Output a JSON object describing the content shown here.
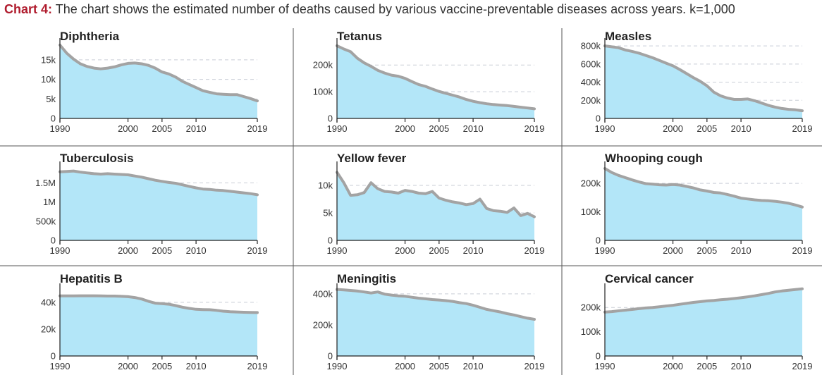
{
  "header": {
    "label": "Chart 4:",
    "text": "The chart shows the estimated number of deaths caused by various vaccine-preventable diseases across years. k=1,000"
  },
  "chart_data": [
    {
      "type": "area",
      "title": "Diphtheria",
      "x_ticks": [
        "1990",
        "2000",
        "2005",
        "2010",
        "2019"
      ],
      "y_ticks": [
        {
          "v": 0,
          "label": "0"
        },
        {
          "v": 5000,
          "label": "5k"
        },
        {
          "v": 10000,
          "label": "10k"
        },
        {
          "v": 15000,
          "label": "15k"
        }
      ],
      "ylim": [
        0,
        19500
      ],
      "x": [
        1990,
        1991,
        1992,
        1993,
        1994,
        1995,
        1996,
        1997,
        1998,
        1999,
        2000,
        2001,
        2002,
        2003,
        2004,
        2005,
        2006,
        2007,
        2008,
        2009,
        2010,
        2011,
        2012,
        2013,
        2014,
        2015,
        2016,
        2017,
        2018,
        2019
      ],
      "values": [
        18800,
        16700,
        15200,
        14000,
        13300,
        12900,
        12700,
        12900,
        13200,
        13700,
        14100,
        14200,
        14000,
        13600,
        12900,
        11900,
        11400,
        10600,
        9500,
        8700,
        7900,
        7100,
        6700,
        6300,
        6200,
        6100,
        6100,
        5600,
        5100,
        4500
      ]
    },
    {
      "type": "area",
      "title": "Tetanus",
      "x_ticks": [
        "1990",
        "2000",
        "2005",
        "2010",
        "2019"
      ],
      "y_ticks": [
        {
          "v": 0,
          "label": "0"
        },
        {
          "v": 100000,
          "label": "100k"
        },
        {
          "v": 200000,
          "label": "200k"
        }
      ],
      "ylim": [
        0,
        285000
      ],
      "x": [
        1990,
        1991,
        1992,
        1993,
        1994,
        1995,
        1996,
        1997,
        1998,
        1999,
        2000,
        2001,
        2002,
        2003,
        2004,
        2005,
        2006,
        2007,
        2008,
        2009,
        2010,
        2011,
        2012,
        2013,
        2014,
        2015,
        2016,
        2017,
        2018,
        2019
      ],
      "values": [
        272000,
        260000,
        250000,
        225000,
        208000,
        195000,
        180000,
        170000,
        162000,
        158000,
        150000,
        138000,
        127000,
        120000,
        110000,
        101000,
        94000,
        87000,
        80000,
        71000,
        64000,
        59000,
        55000,
        52000,
        50000,
        48000,
        45000,
        42000,
        39000,
        36000
      ]
    },
    {
      "type": "area",
      "title": "Measles",
      "x_ticks": [
        "1990",
        "2000",
        "2005",
        "2010",
        "2019"
      ],
      "y_ticks": [
        {
          "v": 0,
          "label": "0"
        },
        {
          "v": 200000,
          "label": "200k"
        },
        {
          "v": 400000,
          "label": "400k"
        },
        {
          "v": 600000,
          "label": "600k"
        },
        {
          "v": 800000,
          "label": "800k"
        }
      ],
      "ylim": [
        0,
        840000
      ],
      "x": [
        1990,
        1991,
        1992,
        1993,
        1994,
        1995,
        1996,
        1997,
        1998,
        1999,
        2000,
        2001,
        2002,
        2003,
        2004,
        2005,
        2006,
        2007,
        2008,
        2009,
        2010,
        2011,
        2012,
        2013,
        2014,
        2015,
        2016,
        2017,
        2018,
        2019
      ],
      "values": [
        800000,
        790000,
        780000,
        755000,
        740000,
        720000,
        695000,
        670000,
        640000,
        610000,
        580000,
        540000,
        495000,
        450000,
        410000,
        360000,
        290000,
        250000,
        225000,
        210000,
        210000,
        215000,
        195000,
        170000,
        145000,
        125000,
        110000,
        100000,
        95000,
        85000
      ]
    },
    {
      "type": "area",
      "title": "Tuberculosis",
      "x_ticks": [
        "1990",
        "2000",
        "2005",
        "2010",
        "2019"
      ],
      "y_ticks": [
        {
          "v": 0,
          "label": "0"
        },
        {
          "v": 500000,
          "label": "500k"
        },
        {
          "v": 1000000,
          "label": "1M"
        },
        {
          "v": 1500000,
          "label": "1.5M"
        }
      ],
      "ylim": [
        0,
        1950000
      ],
      "x": [
        1990,
        1991,
        1992,
        1993,
        1994,
        1995,
        1996,
        1997,
        1998,
        1999,
        2000,
        2001,
        2002,
        2003,
        2004,
        2005,
        2006,
        2007,
        2008,
        2009,
        2010,
        2011,
        2012,
        2013,
        2014,
        2015,
        2016,
        2017,
        2018,
        2019
      ],
      "values": [
        1790000,
        1800000,
        1810000,
        1780000,
        1760000,
        1740000,
        1730000,
        1740000,
        1730000,
        1720000,
        1710000,
        1680000,
        1650000,
        1610000,
        1570000,
        1540000,
        1510000,
        1490000,
        1450000,
        1410000,
        1370000,
        1340000,
        1330000,
        1310000,
        1300000,
        1280000,
        1260000,
        1240000,
        1220000,
        1190000
      ]
    },
    {
      "type": "area",
      "title": "Yellow fever",
      "x_ticks": [
        "1990",
        "2000",
        "2005",
        "2010",
        "2019"
      ],
      "y_ticks": [
        {
          "v": 0,
          "label": "0"
        },
        {
          "v": 5000,
          "label": "5k"
        },
        {
          "v": 10000,
          "label": "10k"
        }
      ],
      "ylim": [
        0,
        13600
      ],
      "x": [
        1990,
        1991,
        1992,
        1993,
        1994,
        1995,
        1996,
        1997,
        1998,
        1999,
        2000,
        2001,
        2002,
        2003,
        2004,
        2005,
        2006,
        2007,
        2008,
        2009,
        2010,
        2011,
        2012,
        2013,
        2014,
        2015,
        2016,
        2017,
        2018,
        2019
      ],
      "values": [
        12400,
        10500,
        8200,
        8300,
        8700,
        10500,
        9400,
        8900,
        8800,
        8600,
        9100,
        8900,
        8600,
        8500,
        8900,
        7700,
        7300,
        7000,
        6800,
        6500,
        6700,
        7500,
        5800,
        5400,
        5300,
        5100,
        5900,
        4500,
        4900,
        4300
      ]
    },
    {
      "type": "area",
      "title": "Whooping cough",
      "x_ticks": [
        "1990",
        "2000",
        "2005",
        "2010",
        "2019"
      ],
      "y_ticks": [
        {
          "v": 0,
          "label": "0"
        },
        {
          "v": 100000,
          "label": "100k"
        },
        {
          "v": 200000,
          "label": "200k"
        }
      ],
      "ylim": [
        0,
        262000
      ],
      "x": [
        1990,
        1991,
        1992,
        1993,
        1994,
        1995,
        1996,
        1997,
        1998,
        1999,
        2000,
        2001,
        2002,
        2003,
        2004,
        2005,
        2006,
        2007,
        2008,
        2009,
        2010,
        2011,
        2012,
        2013,
        2014,
        2015,
        2016,
        2017,
        2018,
        2019
      ],
      "values": [
        252000,
        238000,
        228000,
        220000,
        212000,
        205000,
        199000,
        197000,
        195000,
        194000,
        196000,
        194000,
        189000,
        184000,
        177000,
        173000,
        168000,
        166000,
        161000,
        155000,
        148000,
        145000,
        142000,
        140000,
        139000,
        137000,
        134000,
        130000,
        124000,
        117000
      ]
    },
    {
      "type": "area",
      "title": "Hepatitis B",
      "x_ticks": [
        "1990",
        "2000",
        "2005",
        "2010",
        "2019"
      ],
      "y_ticks": [
        {
          "v": 0,
          "label": "0"
        },
        {
          "v": 20000,
          "label": "20k"
        },
        {
          "v": 40000,
          "label": "40k"
        }
      ],
      "ylim": [
        0,
        51000
      ],
      "x": [
        1990,
        1991,
        1992,
        1993,
        1994,
        1995,
        1996,
        1997,
        1998,
        1999,
        2000,
        2001,
        2002,
        2003,
        2004,
        2005,
        2006,
        2007,
        2008,
        2009,
        2010,
        2011,
        2012,
        2013,
        2014,
        2015,
        2016,
        2017,
        2018,
        2019
      ],
      "values": [
        44800,
        44800,
        44800,
        44900,
        44900,
        44900,
        44800,
        44700,
        44700,
        44500,
        44200,
        43600,
        42500,
        40800,
        39400,
        39000,
        38600,
        37600,
        36400,
        35500,
        34800,
        34600,
        34500,
        34000,
        33400,
        33000,
        32800,
        32600,
        32500,
        32400
      ]
    },
    {
      "type": "area",
      "title": "Meningitis",
      "x_ticks": [
        "1990",
        "2000",
        "2005",
        "2010",
        "2019"
      ],
      "y_ticks": [
        {
          "v": 0,
          "label": "0"
        },
        {
          "v": 200000,
          "label": "200k"
        },
        {
          "v": 400000,
          "label": "400k"
        }
      ],
      "ylim": [
        0,
        440000
      ],
      "x": [
        1990,
        1991,
        1992,
        1993,
        1994,
        1995,
        1996,
        1997,
        1998,
        1999,
        2000,
        2001,
        2002,
        2003,
        2004,
        2005,
        2006,
        2007,
        2008,
        2009,
        2010,
        2011,
        2012,
        2013,
        2014,
        2015,
        2016,
        2017,
        2018,
        2019
      ],
      "values": [
        428000,
        425000,
        422000,
        418000,
        412000,
        405000,
        412000,
        398000,
        392000,
        387000,
        384000,
        378000,
        372000,
        368000,
        363000,
        360000,
        356000,
        351000,
        343000,
        337000,
        326000,
        313000,
        300000,
        291000,
        283000,
        272000,
        264000,
        253000,
        243000,
        236000
      ]
    },
    {
      "type": "area",
      "title": "Cervical cancer",
      "x_ticks": [
        "1990",
        "2000",
        "2005",
        "2010",
        "2019"
      ],
      "y_ticks": [
        {
          "v": 0,
          "label": "0"
        },
        {
          "v": 100000,
          "label": "100k"
        },
        {
          "v": 200000,
          "label": "200k"
        }
      ],
      "ylim": [
        0,
        282000
      ],
      "x": [
        1990,
        1991,
        1992,
        1993,
        1994,
        1995,
        1996,
        1997,
        1998,
        1999,
        2000,
        2001,
        2002,
        2003,
        2004,
        2005,
        2006,
        2007,
        2008,
        2009,
        2010,
        2011,
        2012,
        2013,
        2014,
        2015,
        2016,
        2017,
        2018,
        2019
      ],
      "values": [
        181000,
        183000,
        186000,
        189000,
        192000,
        195000,
        198000,
        200000,
        203000,
        206000,
        209000,
        213000,
        217000,
        221000,
        224000,
        227000,
        229000,
        232000,
        234000,
        237000,
        240000,
        244000,
        248000,
        253000,
        258000,
        264000,
        268000,
        271000,
        274000,
        277000
      ]
    }
  ]
}
